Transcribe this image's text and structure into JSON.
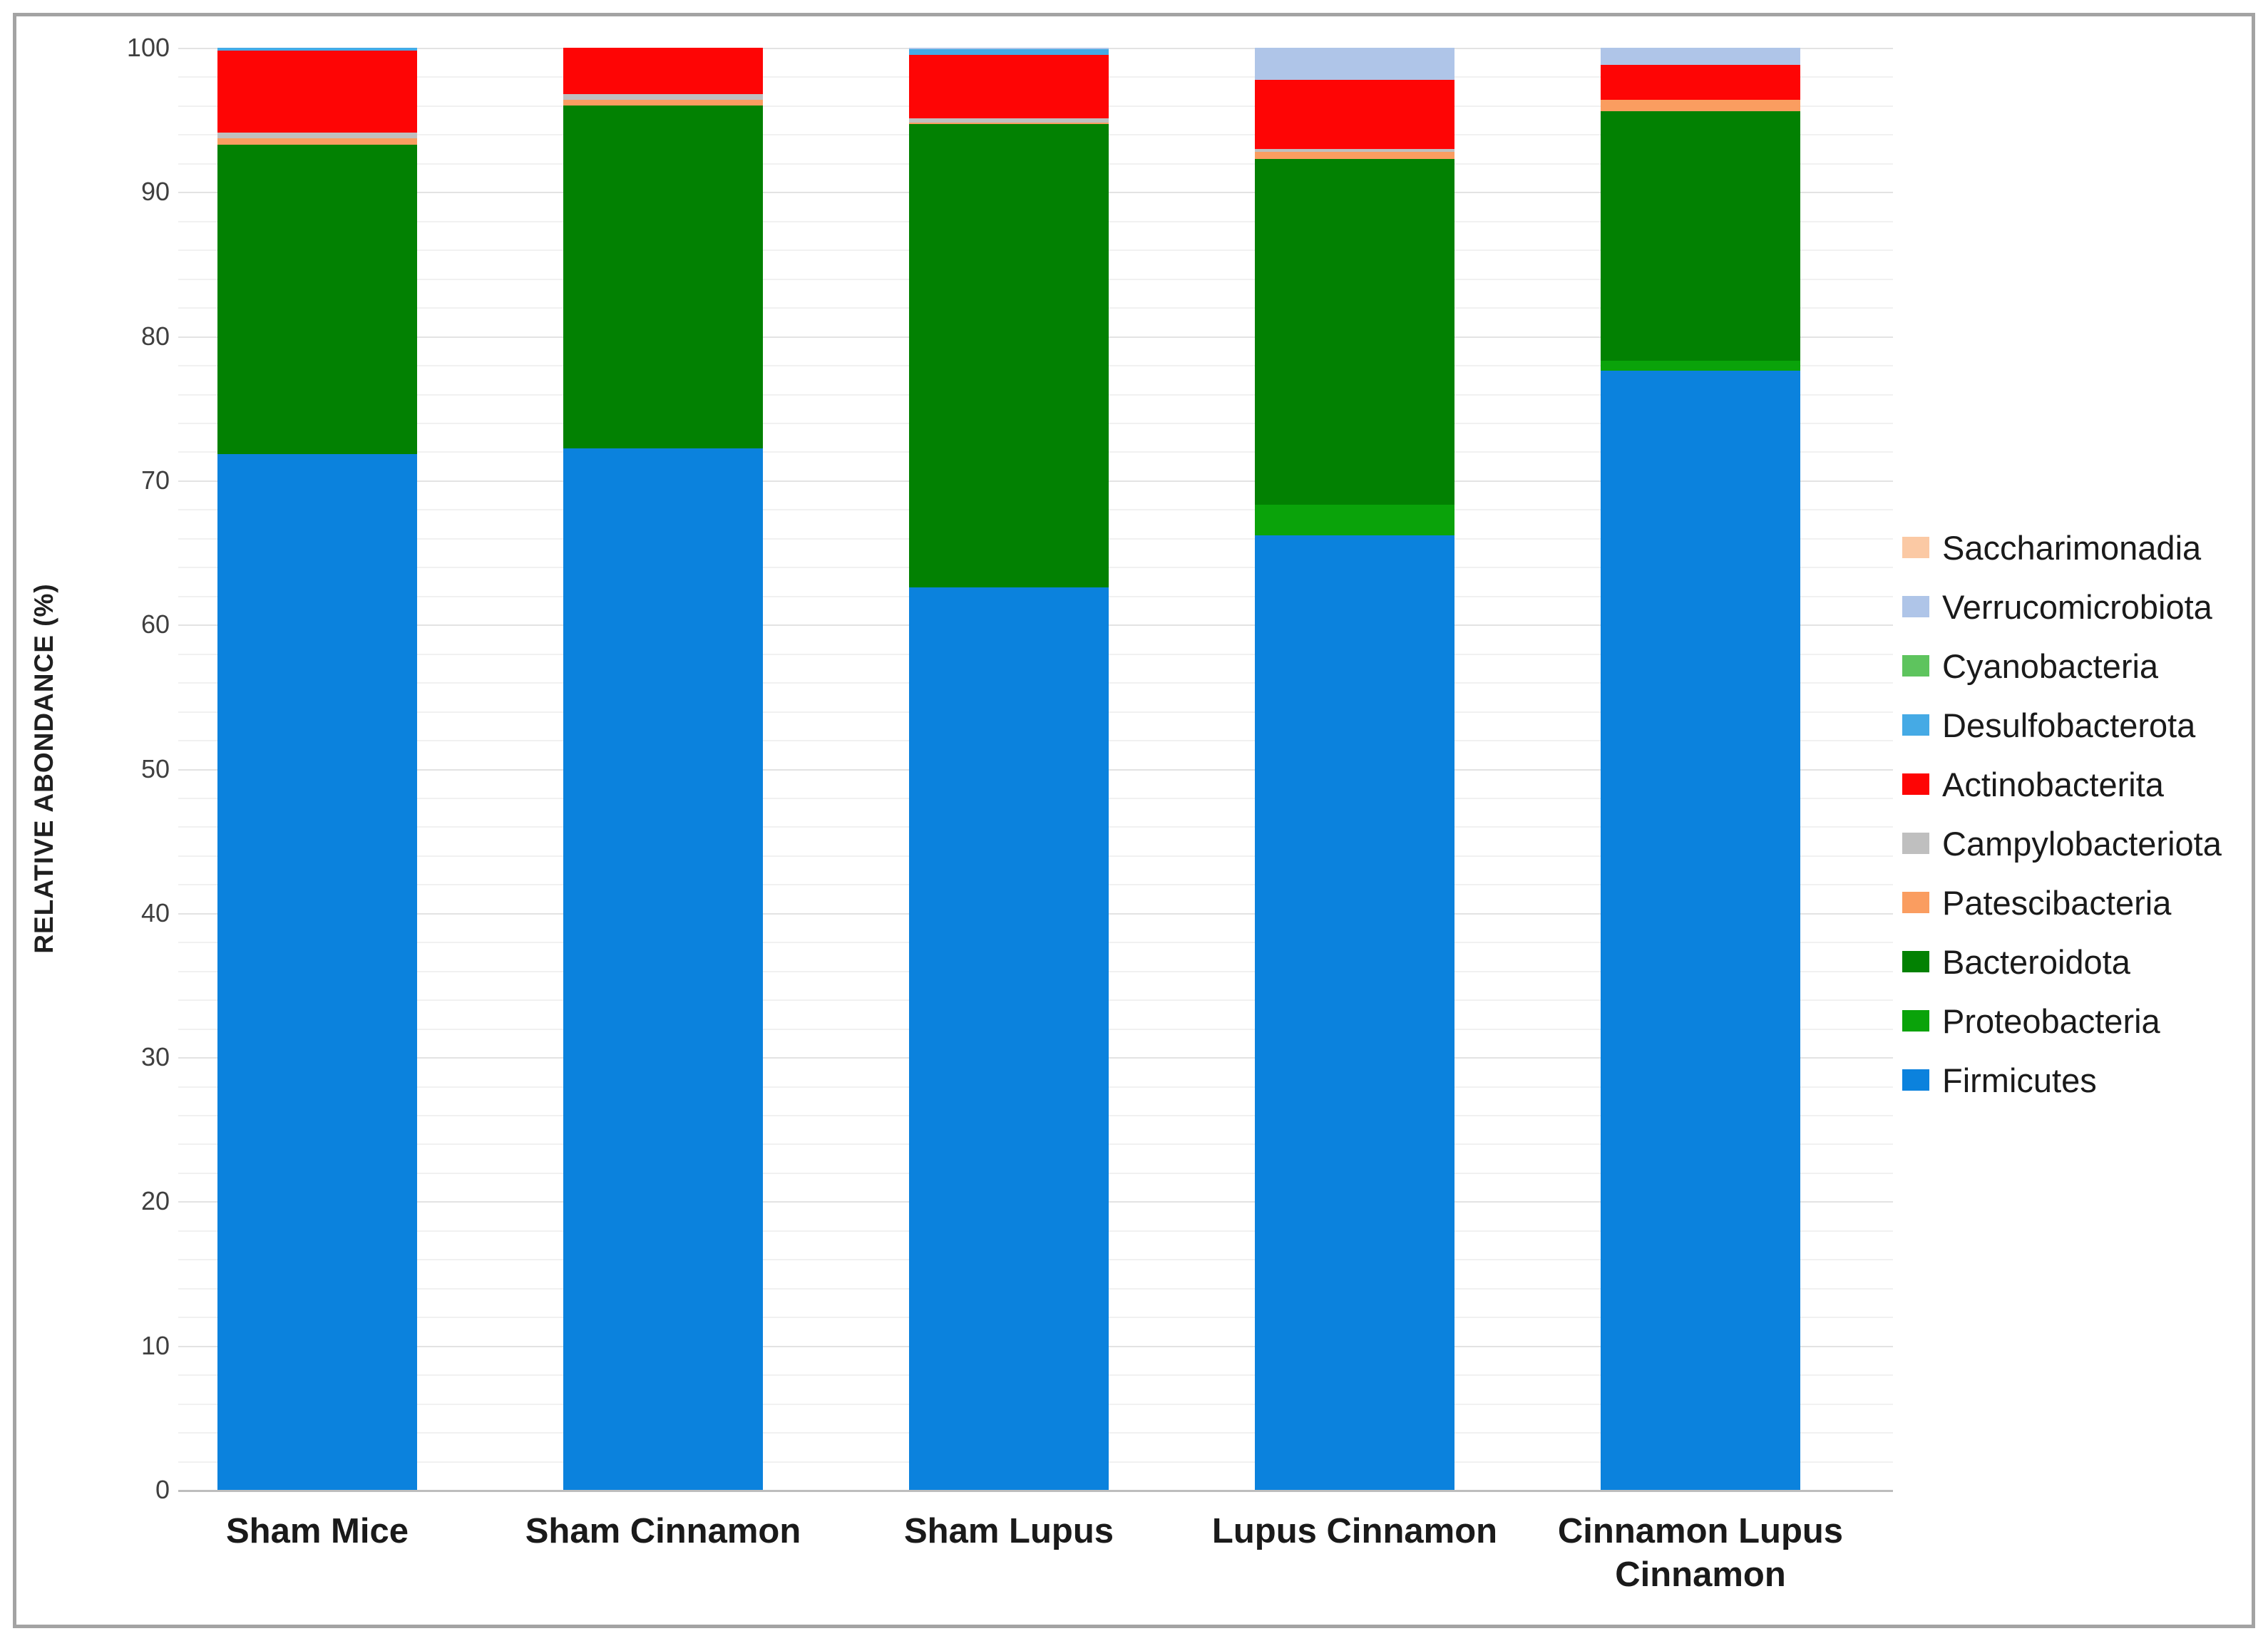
{
  "figure": {
    "background": "#ffffff",
    "frame_color": "#a3a3a3"
  },
  "chart_data": {
    "type": "bar",
    "stacked": true,
    "title": "",
    "xlabel": "",
    "ylabel": "RELATIVE ABONDANCE (%)",
    "ylim": [
      0,
      100
    ],
    "y_major_ticks": [
      0,
      10,
      20,
      30,
      40,
      50,
      60,
      70,
      80,
      90,
      100
    ],
    "y_minor_step": 2,
    "grid": "horizontal",
    "legend_position": "right",
    "categories": [
      "Sham Mice",
      "Sham Cinnamon",
      "Sham Lupus",
      "Lupus Cinnamon",
      "Cinnamon Lupus Cinnamon"
    ],
    "series": [
      {
        "name": "Firmicutes",
        "color": "#0b82dd",
        "values": [
          71.8,
          72.2,
          62.6,
          66.2,
          77.6
        ]
      },
      {
        "name": "Proteobacteria",
        "color": "#0aa30a",
        "values": [
          0,
          0,
          0,
          2.1,
          0.7
        ]
      },
      {
        "name": "Bacteroidota",
        "color": "#028102",
        "values": [
          21.5,
          23.8,
          32.1,
          24.0,
          17.3
        ]
      },
      {
        "name": "Patescibacteria",
        "color": "#fa9d60",
        "values": [
          0.4,
          0.4,
          0.1,
          0.5,
          0.8
        ]
      },
      {
        "name": "Campylobacteriota",
        "color": "#bfbfbf",
        "values": [
          0.4,
          0.4,
          0.3,
          0.2,
          0
        ]
      },
      {
        "name": "Actinobacterita",
        "color": "#fe0505",
        "values": [
          5.7,
          3.2,
          4.4,
          4.8,
          2.4
        ]
      },
      {
        "name": "Desulfobacterota",
        "color": "#45aae5",
        "values": [
          0.2,
          0,
          0.4,
          0,
          0
        ]
      },
      {
        "name": "Cyanobacteria",
        "color": "#5ec45e",
        "values": [
          0,
          0,
          0,
          0,
          0
        ]
      },
      {
        "name": "Verrucomicrobiota",
        "color": "#afc5e8",
        "values": [
          0,
          0,
          0.1,
          2.2,
          1.2
        ]
      },
      {
        "name": "Saccharimonadia",
        "color": "#fbc9a4",
        "values": [
          0,
          0,
          0,
          0,
          0
        ]
      }
    ],
    "legend_order_top_to_bottom": [
      "Saccharimonadia",
      "Verrucomicrobiota",
      "Cyanobacteria",
      "Desulfobacterota",
      "Actinobacterita",
      "Campylobacteriota",
      "Patescibacteria",
      "Bacteroidota",
      "Proteobacteria",
      "Firmicutes"
    ]
  }
}
